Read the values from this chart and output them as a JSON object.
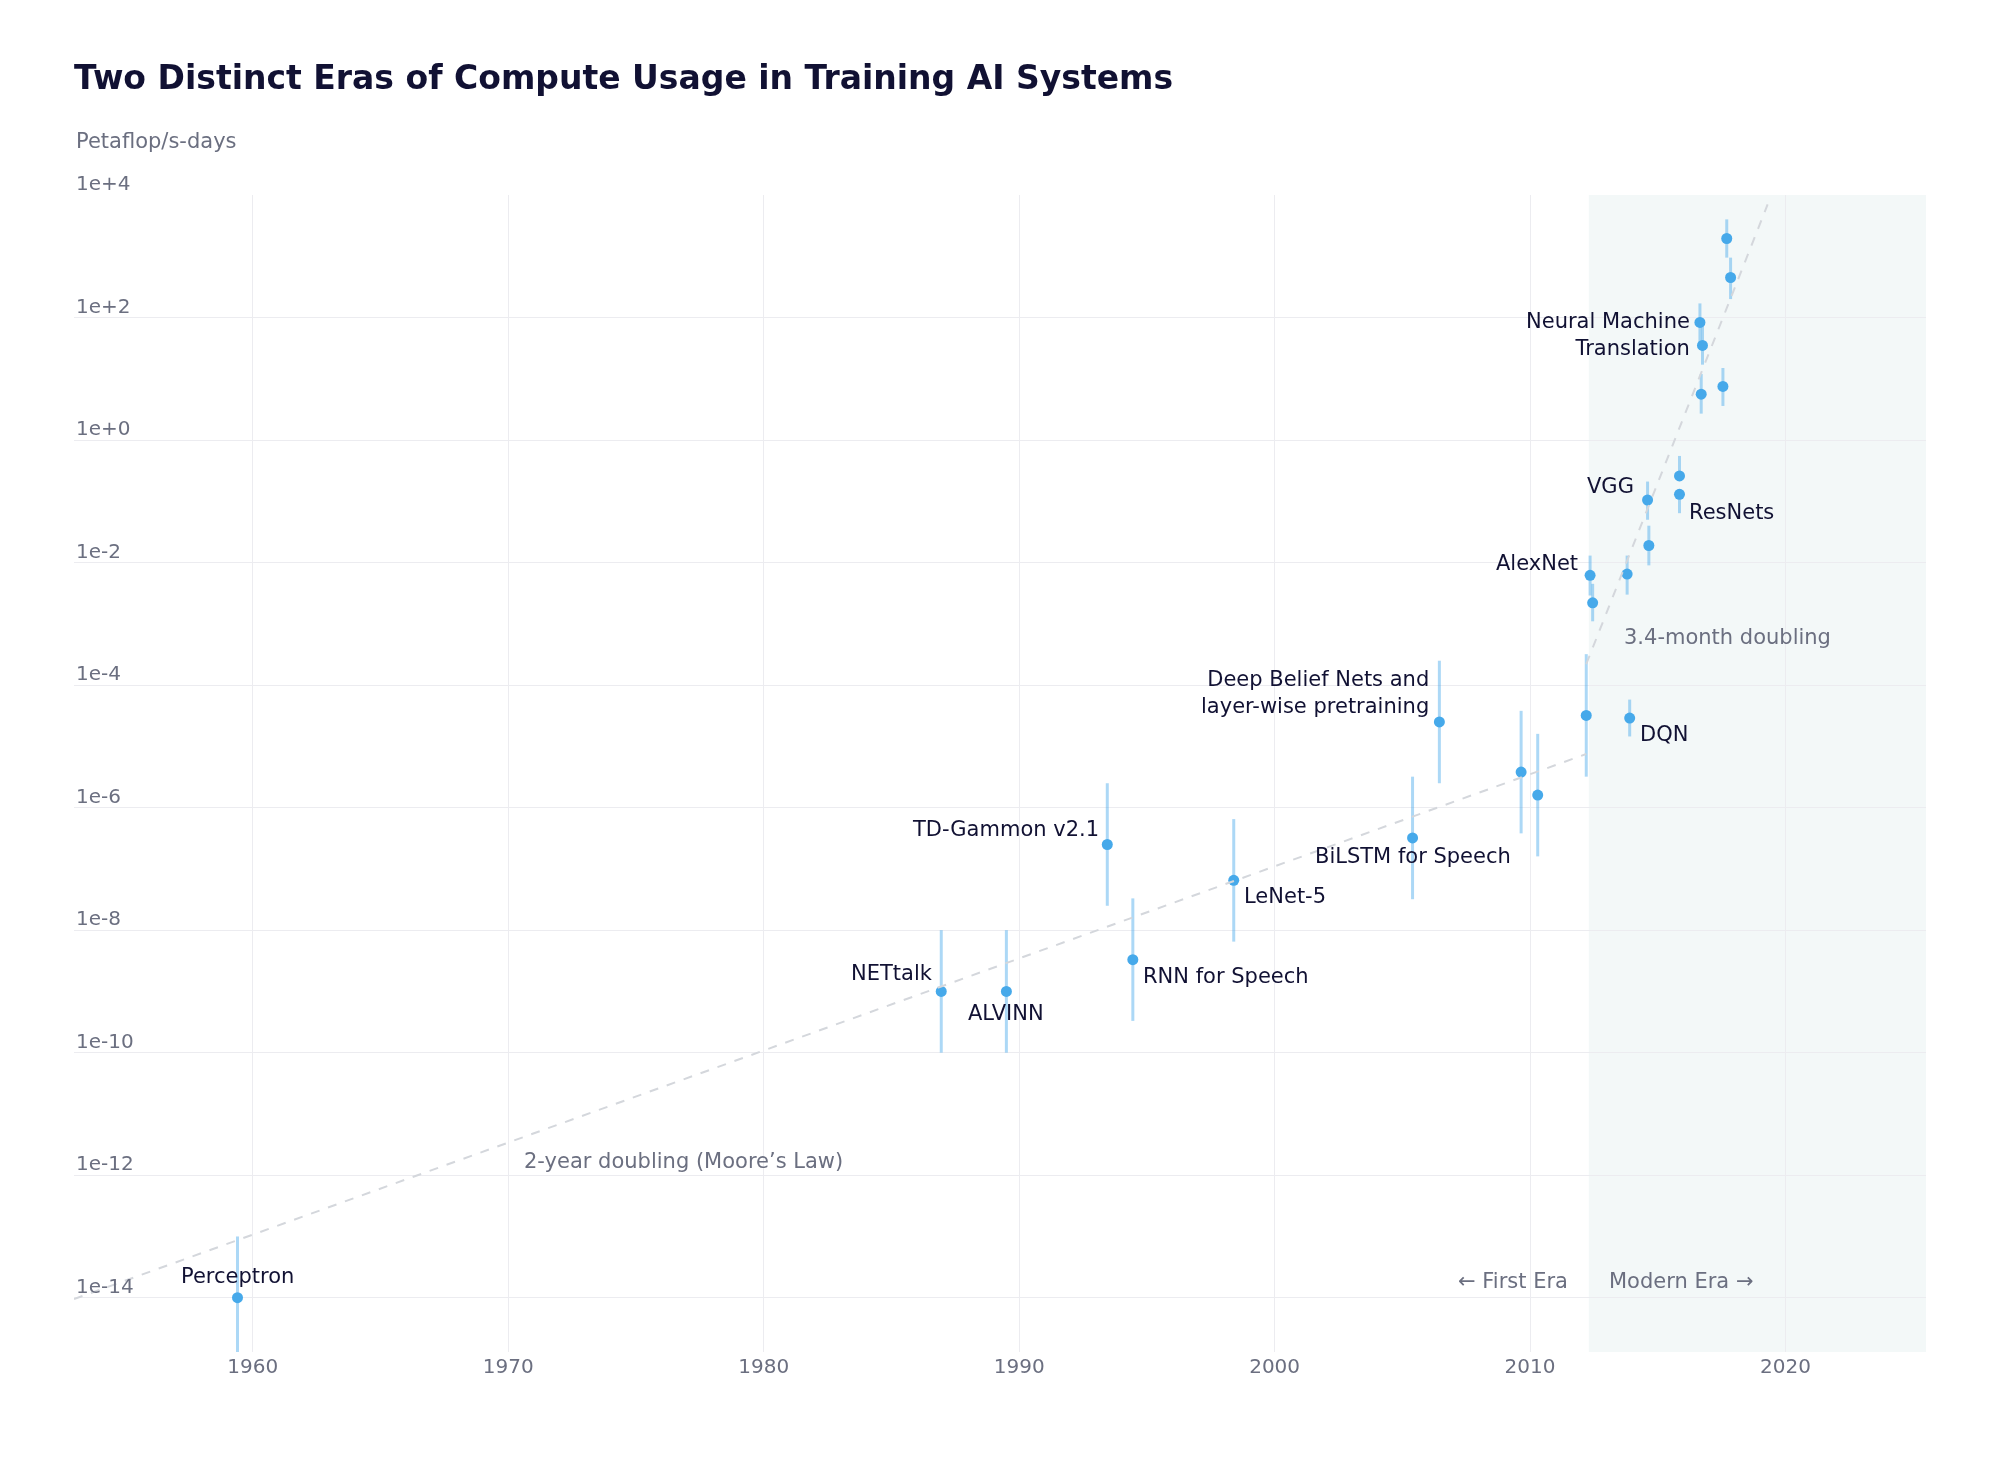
{
  "chart_data": {
    "type": "scatter",
    "title": "Two Distinct Eras of Compute Usage in Training AI Systems",
    "ylabel": "Petaflop/s-days",
    "log": "y",
    "grid": true,
    "marker": "circle",
    "xlim": [
      1953,
      2025.5
    ],
    "xticks": [
      1960,
      1970,
      1980,
      1990,
      2000,
      2010,
      2020
    ],
    "ylim": [
      1.3e-15,
      10000.0
    ],
    "yticks": [
      {
        "value": 10000.0,
        "label": "1e+4"
      },
      {
        "value": 100.0,
        "label": "1e+2"
      },
      {
        "value": 1,
        "label": "1e+0"
      },
      {
        "value": 0.01,
        "label": "1e-2"
      },
      {
        "value": 0.0001,
        "label": "1e-4"
      },
      {
        "value": 1e-06,
        "label": "1e-6"
      },
      {
        "value": 1e-08,
        "label": "1e-8"
      },
      {
        "value": 1e-10,
        "label": "1e-10"
      },
      {
        "value": 1e-12,
        "label": "1e-12"
      },
      {
        "value": 1e-14,
        "label": "1e-14"
      }
    ],
    "bands": [
      {
        "axis": "x",
        "from": 2012.3,
        "to": 2025.5,
        "color": "#f3f8f8"
      }
    ],
    "series": [
      {
        "color": "#46a9ea",
        "x": [
          1959.4,
          1986.95,
          1989.5,
          1993.45,
          1994.45,
          1998.4,
          2005.4,
          2006.45,
          2009.65,
          2010.3,
          2012.2,
          2013.9,
          2012.35,
          2012.45,
          2013.8,
          2014.65,
          2014.6,
          2015.85,
          2015.85,
          2016.7,
          2016.65,
          2016.75,
          2017.55,
          2017.7,
          2017.85
        ],
        "values": [
          1e-14,
          1e-09,
          1e-09,
          2.5e-07,
          3.3e-09,
          6.5e-08,
          3.2e-07,
          2.5e-05,
          3.8e-06,
          1.6e-06,
          3.2e-05,
          2.9e-05,
          0.0062,
          0.0022,
          0.0065,
          0.019,
          0.105,
          0.26,
          0.13,
          5.6,
          83,
          35,
          7.5,
          1950,
          450
        ],
        "errors": [
          [
            1.3e-15,
            1e-13
          ],
          [
            1e-10,
            1e-08
          ],
          [
            1e-10,
            1e-08
          ],
          [
            2.5e-08,
            2.5e-06
          ],
          [
            3.3e-10,
            3.3e-08
          ],
          [
            6.5e-09,
            6.5e-07
          ],
          [
            3.2e-08,
            3.2e-06
          ],
          [
            2.5e-06,
            0.00025
          ],
          [
            3.8e-07,
            3.8e-05
          ],
          [
            1.6e-07,
            1.6e-05
          ],
          [
            3.2e-06,
            0.00032
          ],
          [
            1.45e-05,
            5.8e-05
          ],
          [
            0.0029,
            0.013
          ],
          [
            0.0011,
            0.0045
          ],
          [
            0.003,
            0.013
          ],
          [
            0.009,
            0.04
          ],
          [
            0.05,
            0.21
          ],
          [
            0.26,
            0.55
          ],
          [
            0.064,
            0.13
          ],
          [
            2.7,
            12
          ],
          [
            40,
            170
          ],
          [
            17,
            72
          ],
          [
            3.6,
            15
          ],
          [
            950,
            4000
          ],
          [
            200,
            950
          ]
        ]
      },
      {
        "type": "line",
        "color": "#d4d7dc",
        "line_style": "dashed",
        "marker": "none",
        "x": [
          1953,
          2012.2
        ],
        "values": [
          9.5e-15,
          7.5e-06
        ]
      },
      {
        "type": "line",
        "color": "#d4d7dc",
        "line_style": "dashed",
        "marker": "none",
        "x": [
          2012.2,
          2019.3
        ],
        "values": [
          0.00022,
          7000.0
        ]
      }
    ],
    "annotations": [
      {
        "text": "Perceptron",
        "x": 1959.4,
        "y": 1e-14
      },
      {
        "text": "NETtalk",
        "x": 1986.95,
        "y": 1e-09
      },
      {
        "text": "ALVINN",
        "x": 1989.5,
        "y": 1e-09
      },
      {
        "text": "TD-Gammon v2.1",
        "x": 1993.45,
        "y": 2.5e-07
      },
      {
        "text": "RNN for Speech",
        "x": 1994.45,
        "y": 3.3e-09
      },
      {
        "text": "LeNet-5",
        "x": 1998.4,
        "y": 6.5e-08
      },
      {
        "text": "BiLSTM for Speech",
        "x": 2005.4,
        "y": 3.2e-07
      },
      {
        "text": "Deep Belief Nets and\nlayer-wise pretraining",
        "x": 2006.45,
        "y": 2.5e-05
      },
      {
        "text": "Neural Machine\nTranslation",
        "x": 2016.65,
        "y": 83
      },
      {
        "text": "AlexNet",
        "x": 2012.35,
        "y": 0.0062
      },
      {
        "text": "VGG",
        "x": 2014.6,
        "y": 0.105
      },
      {
        "text": "ResNets",
        "x": 2015.85,
        "y": 0.13
      },
      {
        "text": "DQN",
        "x": 2013.9,
        "y": 2.9e-05
      },
      "2-year doubling (Moore’s Law)",
      "3.4-month doubling",
      "← First Era",
      "Modern Era →"
    ]
  }
}
